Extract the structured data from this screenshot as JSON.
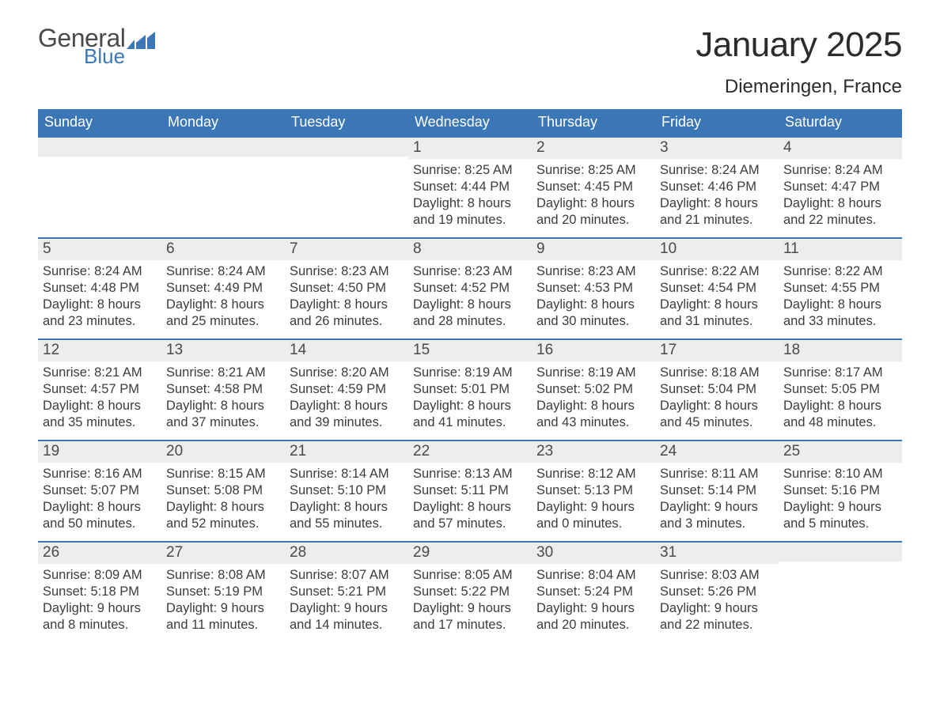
{
  "logo": {
    "general": "General",
    "blue": "Blue",
    "accent_color": "#3b77b7"
  },
  "title": "January 2025",
  "location": "Diemeringen, France",
  "colors": {
    "header_bg": "#3b77b7",
    "header_text": "#ffffff",
    "daynum_bg": "#ededed",
    "daynum_border": "#3b77b7",
    "body_text": "#3c3c3c",
    "page_bg": "#ffffff"
  },
  "day_names": [
    "Sunday",
    "Monday",
    "Tuesday",
    "Wednesday",
    "Thursday",
    "Friday",
    "Saturday"
  ],
  "weeks": [
    [
      null,
      null,
      null,
      {
        "n": "1",
        "sr": "8:25 AM",
        "ss": "4:44 PM",
        "dh": "8",
        "dm": "19"
      },
      {
        "n": "2",
        "sr": "8:25 AM",
        "ss": "4:45 PM",
        "dh": "8",
        "dm": "20"
      },
      {
        "n": "3",
        "sr": "8:24 AM",
        "ss": "4:46 PM",
        "dh": "8",
        "dm": "21"
      },
      {
        "n": "4",
        "sr": "8:24 AM",
        "ss": "4:47 PM",
        "dh": "8",
        "dm": "22"
      }
    ],
    [
      {
        "n": "5",
        "sr": "8:24 AM",
        "ss": "4:48 PM",
        "dh": "8",
        "dm": "23"
      },
      {
        "n": "6",
        "sr": "8:24 AM",
        "ss": "4:49 PM",
        "dh": "8",
        "dm": "25"
      },
      {
        "n": "7",
        "sr": "8:23 AM",
        "ss": "4:50 PM",
        "dh": "8",
        "dm": "26"
      },
      {
        "n": "8",
        "sr": "8:23 AM",
        "ss": "4:52 PM",
        "dh": "8",
        "dm": "28"
      },
      {
        "n": "9",
        "sr": "8:23 AM",
        "ss": "4:53 PM",
        "dh": "8",
        "dm": "30"
      },
      {
        "n": "10",
        "sr": "8:22 AM",
        "ss": "4:54 PM",
        "dh": "8",
        "dm": "31"
      },
      {
        "n": "11",
        "sr": "8:22 AM",
        "ss": "4:55 PM",
        "dh": "8",
        "dm": "33"
      }
    ],
    [
      {
        "n": "12",
        "sr": "8:21 AM",
        "ss": "4:57 PM",
        "dh": "8",
        "dm": "35"
      },
      {
        "n": "13",
        "sr": "8:21 AM",
        "ss": "4:58 PM",
        "dh": "8",
        "dm": "37"
      },
      {
        "n": "14",
        "sr": "8:20 AM",
        "ss": "4:59 PM",
        "dh": "8",
        "dm": "39"
      },
      {
        "n": "15",
        "sr": "8:19 AM",
        "ss": "5:01 PM",
        "dh": "8",
        "dm": "41"
      },
      {
        "n": "16",
        "sr": "8:19 AM",
        "ss": "5:02 PM",
        "dh": "8",
        "dm": "43"
      },
      {
        "n": "17",
        "sr": "8:18 AM",
        "ss": "5:04 PM",
        "dh": "8",
        "dm": "45"
      },
      {
        "n": "18",
        "sr": "8:17 AM",
        "ss": "5:05 PM",
        "dh": "8",
        "dm": "48"
      }
    ],
    [
      {
        "n": "19",
        "sr": "8:16 AM",
        "ss": "5:07 PM",
        "dh": "8",
        "dm": "50"
      },
      {
        "n": "20",
        "sr": "8:15 AM",
        "ss": "5:08 PM",
        "dh": "8",
        "dm": "52"
      },
      {
        "n": "21",
        "sr": "8:14 AM",
        "ss": "5:10 PM",
        "dh": "8",
        "dm": "55"
      },
      {
        "n": "22",
        "sr": "8:13 AM",
        "ss": "5:11 PM",
        "dh": "8",
        "dm": "57"
      },
      {
        "n": "23",
        "sr": "8:12 AM",
        "ss": "5:13 PM",
        "dh": "9",
        "dm": "0"
      },
      {
        "n": "24",
        "sr": "8:11 AM",
        "ss": "5:14 PM",
        "dh": "9",
        "dm": "3"
      },
      {
        "n": "25",
        "sr": "8:10 AM",
        "ss": "5:16 PM",
        "dh": "9",
        "dm": "5"
      }
    ],
    [
      {
        "n": "26",
        "sr": "8:09 AM",
        "ss": "5:18 PM",
        "dh": "9",
        "dm": "8"
      },
      {
        "n": "27",
        "sr": "8:08 AM",
        "ss": "5:19 PM",
        "dh": "9",
        "dm": "11"
      },
      {
        "n": "28",
        "sr": "8:07 AM",
        "ss": "5:21 PM",
        "dh": "9",
        "dm": "14"
      },
      {
        "n": "29",
        "sr": "8:05 AM",
        "ss": "5:22 PM",
        "dh": "9",
        "dm": "17"
      },
      {
        "n": "30",
        "sr": "8:04 AM",
        "ss": "5:24 PM",
        "dh": "9",
        "dm": "20"
      },
      {
        "n": "31",
        "sr": "8:03 AM",
        "ss": "5:26 PM",
        "dh": "9",
        "dm": "22"
      },
      null
    ]
  ],
  "labels": {
    "sunrise": "Sunrise: ",
    "sunset": "Sunset: ",
    "daylight_pre": "Daylight: ",
    "hours": " hours",
    "and": "and ",
    "minutes": " minutes."
  }
}
